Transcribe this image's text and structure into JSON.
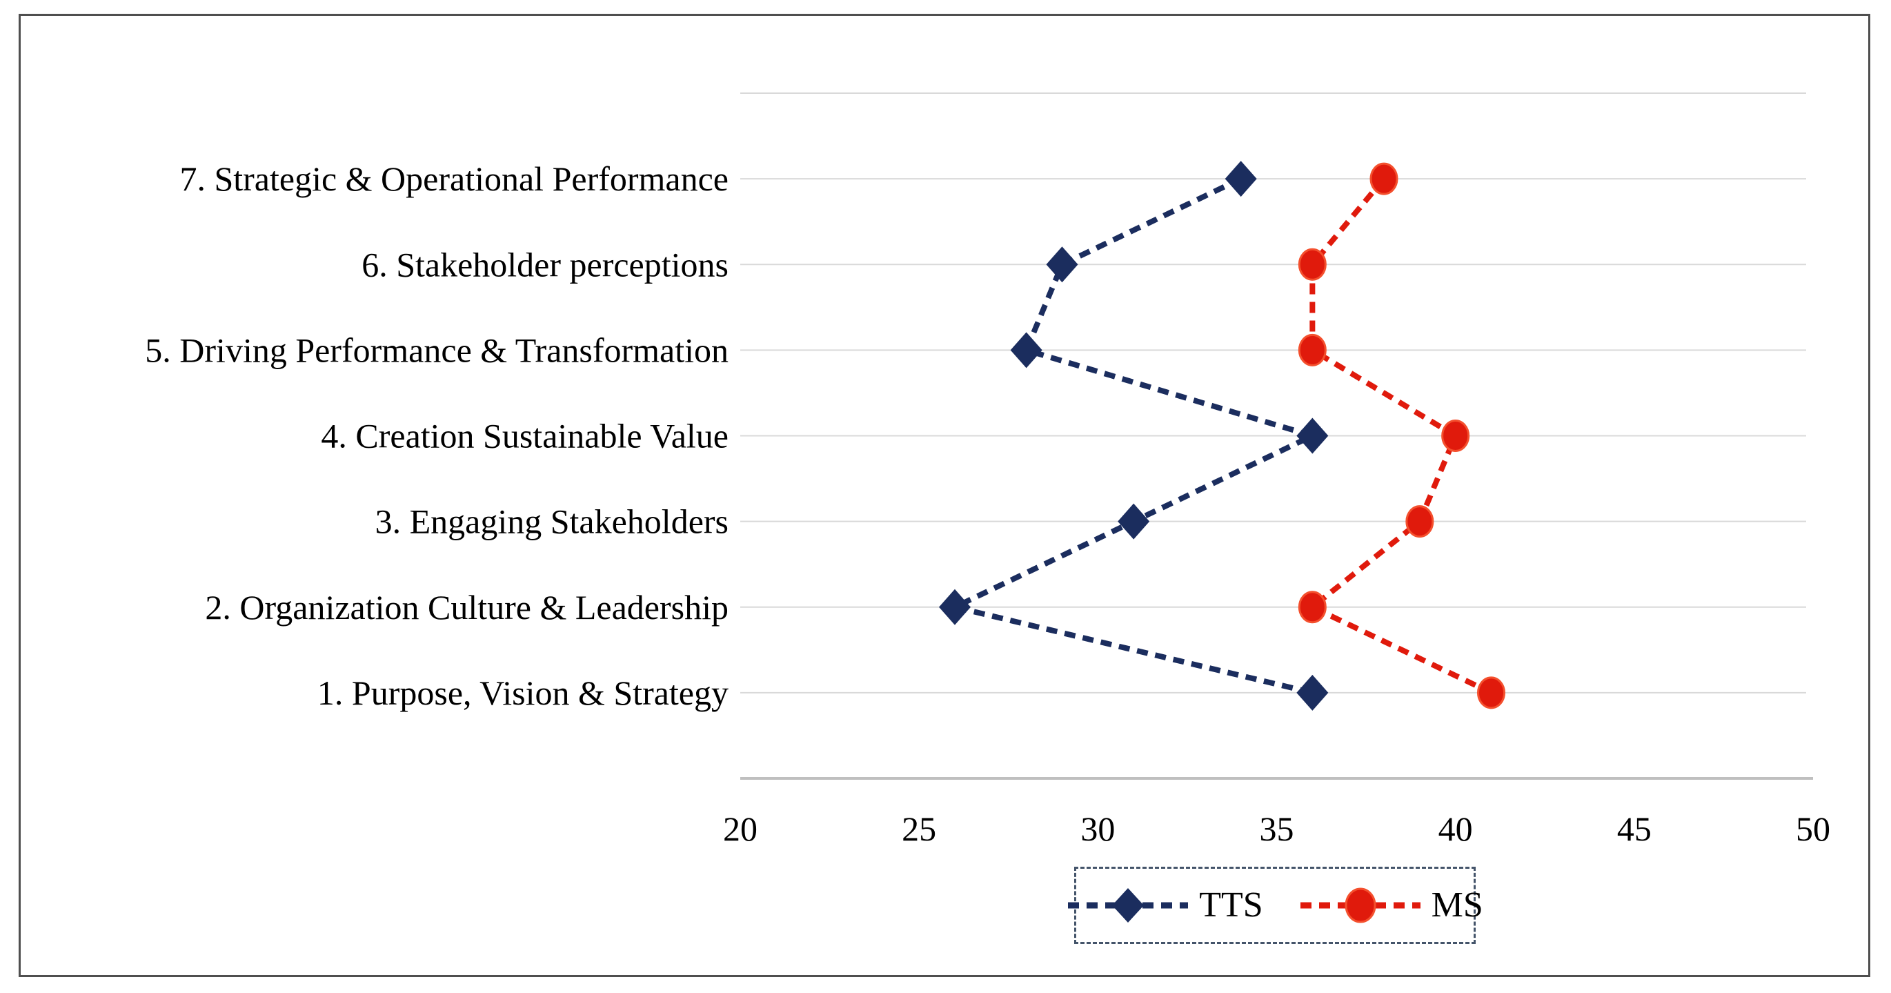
{
  "figure": {
    "background_color": "#ffffff",
    "border_color": "#4f4f4f"
  },
  "chart_data": {
    "type": "line",
    "orientation": "horizontal_category_axis_vertical",
    "title": "",
    "xlabel": "",
    "ylabel": "",
    "categories": [
      "7. Strategic & Operational Performance",
      "6. Stakeholder perceptions",
      "5. Driving Performance & Transformation",
      "4. Creation Sustainable Value",
      "3. Engaging Stakeholders",
      "2. Organization Culture & Leadership",
      "1. Purpose, Vision & Strategy"
    ],
    "series": [
      {
        "name": "TTS",
        "values": [
          34,
          29,
          28,
          36,
          31,
          26,
          36
        ],
        "color": "#1b2d5e",
        "marker": "diamond",
        "line_style": "dashed"
      },
      {
        "name": "MS",
        "values": [
          38,
          36,
          36,
          40,
          39,
          36,
          41
        ],
        "color": "#e01a0c",
        "marker": "circle",
        "marker_edge_color": "#f4502e",
        "line_style": "dashed"
      }
    ],
    "x_axis": {
      "min": 20,
      "max": 50,
      "tick_step": 5,
      "tick_labels": [
        "20",
        "25",
        "30",
        "35",
        "40",
        "45",
        "50"
      ]
    },
    "grid": "horizontal_lines_on",
    "gridline_color": "#d9d9d9",
    "axis_line_color": "#bfbfbf",
    "legend_position": "bottom-center",
    "legend_border": "dashed"
  }
}
